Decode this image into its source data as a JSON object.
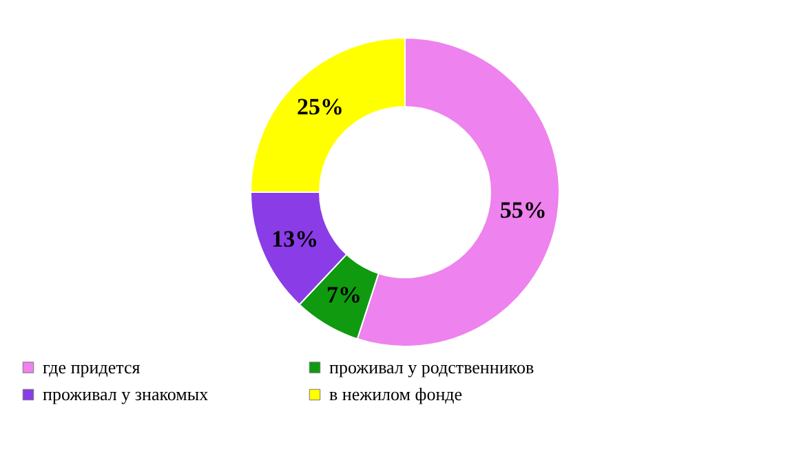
{
  "chart_data": {
    "type": "donut",
    "categories": [
      "где придется",
      "проживал у родственников",
      "проживал у знакомых",
      "в нежилом фонде"
    ],
    "values": [
      55,
      7,
      13,
      25
    ],
    "colors": [
      "#ee82ee",
      "#0f9a0f",
      "#8a3de6",
      "#ffff00"
    ],
    "value_labels": [
      "55%",
      "7%",
      "13%",
      "25%"
    ],
    "legend": "bottom"
  }
}
